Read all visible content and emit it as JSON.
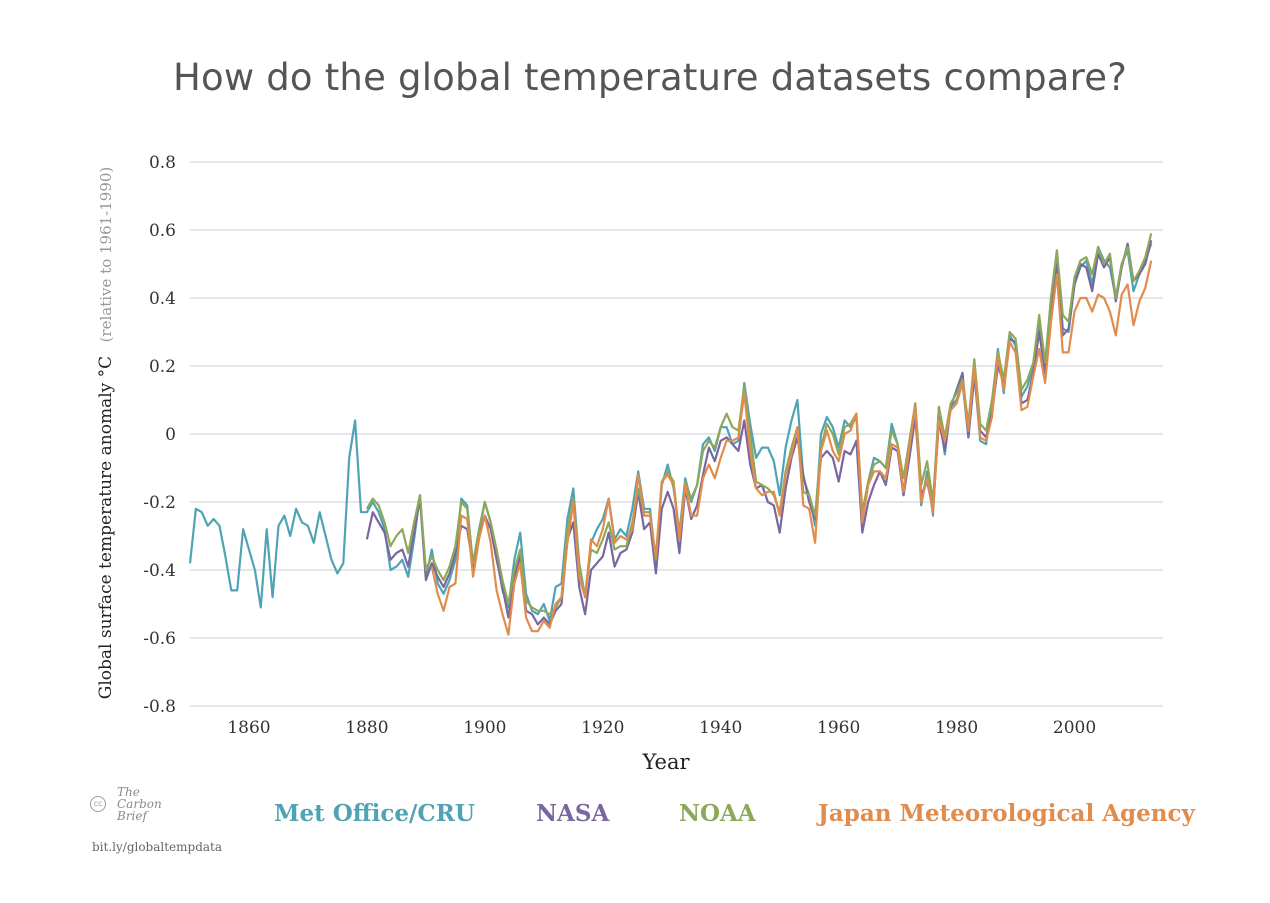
{
  "page": {
    "title": "How do the global temperature datasets compare?",
    "brand": {
      "cc": "cc",
      "name": "The\nCarbon\nBrief"
    },
    "link": "bit.ly/globaltempdata"
  },
  "chart_data": {
    "type": "line",
    "title": "How do the global temperature datasets compare?",
    "xlabel": "Year",
    "ylabel": "Global surface temperature anomaly °C",
    "ylabel_note": "(relative to 1961-1990)",
    "xlim": [
      1850,
      2015
    ],
    "ylim": [
      -0.8,
      0.8
    ],
    "xticks": [
      1860,
      1880,
      1900,
      1920,
      1940,
      1960,
      1980,
      2000
    ],
    "yticks": [
      0.8,
      0.6,
      0.4,
      0.2,
      0,
      -0.2,
      -0.4,
      -0.6,
      -0.8
    ],
    "ytick_labels": [
      "0.8",
      "0.6",
      "0.4",
      "0.2",
      "0",
      "-0.2",
      "-0.4",
      "-0.6",
      "-0.8"
    ],
    "grid": "horizontal",
    "legend_position": "bottom",
    "series": [
      {
        "name": "Met Office/CRU",
        "color": "#4fa3b4",
        "x_start": 1850,
        "values": [
          -0.38,
          -0.22,
          -0.23,
          -0.27,
          -0.25,
          -0.27,
          -0.36,
          -0.46,
          -0.46,
          -0.28,
          -0.34,
          -0.4,
          -0.51,
          -0.28,
          -0.48,
          -0.27,
          -0.24,
          -0.3,
          -0.22,
          -0.26,
          -0.27,
          -0.32,
          -0.23,
          -0.3,
          -0.37,
          -0.41,
          -0.38,
          -0.07,
          0.04,
          -0.23,
          -0.23,
          -0.2,
          -0.23,
          -0.28,
          -0.4,
          -0.39,
          -0.37,
          -0.42,
          -0.31,
          -0.18,
          -0.42,
          -0.34,
          -0.44,
          -0.47,
          -0.43,
          -0.37,
          -0.19,
          -0.21,
          -0.39,
          -0.29,
          -0.2,
          -0.26,
          -0.36,
          -0.46,
          -0.51,
          -0.37,
          -0.29,
          -0.47,
          -0.52,
          -0.53,
          -0.5,
          -0.55,
          -0.45,
          -0.44,
          -0.25,
          -0.16,
          -0.38,
          -0.48,
          -0.32,
          -0.28,
          -0.25,
          -0.19,
          -0.31,
          -0.28,
          -0.3,
          -0.22,
          -0.11,
          -0.22,
          -0.22,
          -0.38,
          -0.15,
          -0.09,
          -0.16,
          -0.29,
          -0.13,
          -0.2,
          -0.15,
          -0.03,
          -0.01,
          -0.05,
          0.02,
          0.02,
          -0.03,
          -0.02,
          0.15,
          0.03,
          -0.07,
          -0.04,
          -0.04,
          -0.08,
          -0.18,
          -0.04,
          0.04,
          0.1,
          -0.13,
          -0.18,
          -0.27,
          0.0,
          0.05,
          0.02,
          -0.04,
          0.04,
          0.02,
          0.05,
          -0.24,
          -0.14,
          -0.07,
          -0.08,
          -0.1,
          0.03,
          -0.03,
          -0.18,
          -0.05,
          0.09,
          -0.21,
          -0.11,
          -0.24,
          0.08,
          -0.06,
          0.08,
          0.1,
          0.15,
          -0.01,
          0.18,
          -0.02,
          -0.03,
          0.09,
          0.25,
          0.12,
          0.29,
          0.26,
          0.11,
          0.14,
          0.2,
          0.32,
          0.18,
          0.4,
          0.54,
          0.31,
          0.3,
          0.44,
          0.49,
          0.51,
          0.44,
          0.55,
          0.51,
          0.49,
          0.4,
          0.5,
          0.54,
          0.42,
          0.47,
          0.51,
          0.56
        ]
      },
      {
        "name": "NASA",
        "color": "#7a66a0",
        "x_start": 1880,
        "values": [
          -0.31,
          -0.23,
          -0.26,
          -0.29,
          -0.37,
          -0.35,
          -0.34,
          -0.39,
          -0.29,
          -0.19,
          -0.43,
          -0.38,
          -0.42,
          -0.45,
          -0.41,
          -0.35,
          -0.27,
          -0.28,
          -0.39,
          -0.3,
          -0.24,
          -0.28,
          -0.37,
          -0.45,
          -0.54,
          -0.42,
          -0.36,
          -0.52,
          -0.53,
          -0.56,
          -0.54,
          -0.56,
          -0.52,
          -0.5,
          -0.31,
          -0.26,
          -0.45,
          -0.53,
          -0.4,
          -0.38,
          -0.36,
          -0.29,
          -0.39,
          -0.35,
          -0.34,
          -0.29,
          -0.17,
          -0.28,
          -0.26,
          -0.41,
          -0.22,
          -0.17,
          -0.22,
          -0.35,
          -0.16,
          -0.25,
          -0.21,
          -0.12,
          -0.04,
          -0.08,
          -0.02,
          -0.01,
          -0.03,
          -0.05,
          0.04,
          -0.09,
          -0.16,
          -0.15,
          -0.2,
          -0.21,
          -0.29,
          -0.16,
          -0.07,
          -0.01,
          -0.12,
          -0.2,
          -0.25,
          -0.07,
          -0.05,
          -0.07,
          -0.14,
          -0.05,
          -0.06,
          -0.02,
          -0.29,
          -0.2,
          -0.15,
          -0.11,
          -0.15,
          -0.04,
          -0.05,
          -0.18,
          -0.07,
          0.05,
          -0.18,
          -0.14,
          -0.22,
          0.04,
          -0.05,
          0.08,
          0.13,
          0.18,
          -0.01,
          0.17,
          0.01,
          -0.01,
          0.06,
          0.2,
          0.15,
          0.28,
          0.27,
          0.09,
          0.1,
          0.18,
          0.3,
          0.18,
          0.35,
          0.5,
          0.29,
          0.31,
          0.44,
          0.5,
          0.49,
          0.42,
          0.53,
          0.49,
          0.52,
          0.39,
          0.49,
          0.56,
          0.45,
          0.47,
          0.5,
          0.57
        ]
      },
      {
        "name": "NOAA",
        "color": "#8ea85a",
        "x_start": 1880,
        "values": [
          -0.22,
          -0.19,
          -0.21,
          -0.26,
          -0.33,
          -0.3,
          -0.28,
          -0.35,
          -0.26,
          -0.18,
          -0.4,
          -0.36,
          -0.4,
          -0.43,
          -0.39,
          -0.33,
          -0.2,
          -0.22,
          -0.38,
          -0.28,
          -0.2,
          -0.26,
          -0.34,
          -0.43,
          -0.5,
          -0.4,
          -0.34,
          -0.49,
          -0.51,
          -0.52,
          -0.52,
          -0.53,
          -0.51,
          -0.48,
          -0.28,
          -0.19,
          -0.38,
          -0.48,
          -0.34,
          -0.35,
          -0.31,
          -0.26,
          -0.34,
          -0.33,
          -0.33,
          -0.26,
          -0.16,
          -0.23,
          -0.23,
          -0.37,
          -0.14,
          -0.11,
          -0.14,
          -0.3,
          -0.14,
          -0.19,
          -0.15,
          -0.05,
          -0.02,
          -0.04,
          0.02,
          0.06,
          0.02,
          0.01,
          0.14,
          0.0,
          -0.14,
          -0.15,
          -0.16,
          -0.18,
          -0.23,
          -0.11,
          -0.04,
          0.02,
          -0.17,
          -0.18,
          -0.24,
          -0.04,
          0.03,
          0.0,
          -0.06,
          0.02,
          0.03,
          0.06,
          -0.23,
          -0.14,
          -0.09,
          -0.08,
          -0.1,
          0.01,
          -0.03,
          -0.13,
          -0.02,
          0.09,
          -0.15,
          -0.08,
          -0.2,
          0.08,
          -0.01,
          0.09,
          0.12,
          0.16,
          0.03,
          0.22,
          0.03,
          0.01,
          0.1,
          0.24,
          0.16,
          0.3,
          0.28,
          0.13,
          0.16,
          0.21,
          0.35,
          0.21,
          0.4,
          0.54,
          0.35,
          0.33,
          0.46,
          0.51,
          0.52,
          0.47,
          0.55,
          0.5,
          0.53,
          0.4,
          0.5,
          0.55,
          0.45,
          0.48,
          0.52,
          0.59
        ]
      },
      {
        "name": "Japan Meteorological Agency",
        "color": "#e08c4c",
        "x_start": 1891,
        "values": [
          -0.39,
          -0.47,
          -0.52,
          -0.45,
          -0.44,
          -0.24,
          -0.25,
          -0.42,
          -0.31,
          -0.24,
          -0.32,
          -0.46,
          -0.53,
          -0.59,
          -0.44,
          -0.38,
          -0.54,
          -0.58,
          -0.58,
          -0.55,
          -0.57,
          -0.5,
          -0.48,
          -0.32,
          -0.2,
          -0.42,
          -0.48,
          -0.31,
          -0.33,
          -0.28,
          -0.19,
          -0.32,
          -0.3,
          -0.31,
          -0.28,
          -0.12,
          -0.24,
          -0.24,
          -0.36,
          -0.14,
          -0.12,
          -0.15,
          -0.31,
          -0.15,
          -0.24,
          -0.24,
          -0.13,
          -0.09,
          -0.13,
          -0.07,
          -0.02,
          -0.02,
          -0.01,
          0.12,
          -0.05,
          -0.16,
          -0.18,
          -0.17,
          -0.17,
          -0.24,
          -0.12,
          -0.06,
          0.02,
          -0.21,
          -0.22,
          -0.32,
          -0.05,
          0.01,
          -0.05,
          -0.08,
          0.0,
          0.01,
          0.06,
          -0.26,
          -0.15,
          -0.11,
          -0.11,
          -0.13,
          -0.03,
          -0.04,
          -0.17,
          -0.04,
          0.08,
          -0.2,
          -0.13,
          -0.23,
          0.04,
          -0.02,
          0.07,
          0.09,
          0.15,
          0.01,
          0.2,
          -0.01,
          -0.02,
          0.05,
          0.23,
          0.13,
          0.27,
          0.24,
          0.07,
          0.08,
          0.17,
          0.25,
          0.15,
          0.33,
          0.47,
          0.24,
          0.24,
          0.36,
          0.4,
          0.4,
          0.36,
          0.41,
          0.4,
          0.36,
          0.29,
          0.41,
          0.44,
          0.32,
          0.39,
          0.43,
          0.51
        ]
      }
    ]
  }
}
